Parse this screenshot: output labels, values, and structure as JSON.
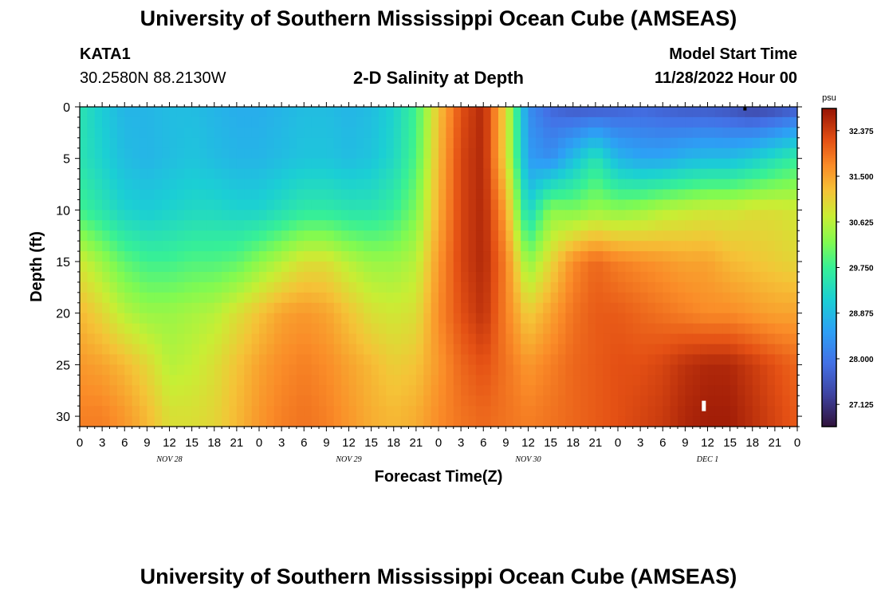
{
  "page": {
    "title": "University of Southern Mississippi Ocean Cube (AMSEAS)",
    "title_repeat": "University of Southern Mississippi Ocean Cube (AMSEAS)",
    "station_name": "KATA1",
    "station_coords": "30.2580N  88.2130W",
    "plot_title": "2-D Salinity at Depth",
    "model_start_label": "Model Start Time",
    "model_start_value": "11/28/2022 Hour 00"
  },
  "chart_data": {
    "type": "heatmap",
    "title": "2-D Salinity at Depth",
    "xlabel": "Forecast Time(Z)",
    "ylabel": "Depth (ft)",
    "x_range_hours": [
      0,
      96
    ],
    "y_range_ft": [
      0,
      31
    ],
    "x_tick_hours": [
      0,
      3,
      6,
      9,
      12,
      15,
      18,
      21,
      24,
      27,
      30,
      33,
      36,
      39,
      42,
      45,
      48,
      51,
      54,
      57,
      60,
      63,
      66,
      69,
      72,
      75,
      78,
      81,
      84,
      87,
      90,
      93,
      96
    ],
    "x_tick_labels": [
      "0",
      "3",
      "6",
      "9",
      "12",
      "15",
      "18",
      "21",
      "0",
      "3",
      "6",
      "9",
      "12",
      "15",
      "18",
      "21",
      "0",
      "3",
      "6",
      "9",
      "12",
      "15",
      "18",
      "21",
      "0",
      "3",
      "6",
      "9",
      "12",
      "15",
      "18",
      "21",
      "0"
    ],
    "date_labels": [
      {
        "hour": 12,
        "text": "NOV 28"
      },
      {
        "hour": 36,
        "text": "NOV 29"
      },
      {
        "hour": 60,
        "text": "NOV 30"
      },
      {
        "hour": 84,
        "text": "DEC 1"
      }
    ],
    "y_ticks": [
      0,
      5,
      10,
      15,
      20,
      25,
      30
    ],
    "y_tick_labels": [
      "0",
      "5",
      "10",
      "15",
      "20",
      "25",
      "30"
    ],
    "colorbar": {
      "unit": "psu",
      "min": 26.7,
      "max": 32.8,
      "tick_values": [
        32.375,
        31.5,
        30.625,
        29.75,
        28.875,
        28.0,
        27.125
      ],
      "tick_labels": [
        "32.375",
        "31.500",
        "30.625",
        "29.750",
        "28.875",
        "28.000",
        "27.125"
      ]
    },
    "salinity_anchor_hours": [
      0,
      3,
      6,
      9,
      12,
      15,
      18,
      21,
      24,
      27,
      30,
      33,
      36,
      39,
      42,
      45,
      48,
      51,
      54,
      57,
      60,
      63,
      66,
      69,
      72,
      75,
      78,
      81,
      84,
      87,
      90,
      93,
      96
    ],
    "salinity_anchor_depths_ft": [
      0,
      5,
      10,
      15,
      20,
      25,
      30
    ],
    "salinity_psu": [
      [
        29.5,
        29.1,
        28.8,
        28.8,
        28.9,
        28.9,
        28.8,
        28.7,
        28.7,
        28.8,
        28.9,
        28.9,
        28.8,
        28.9,
        29.2,
        29.8,
        31.2,
        32.2,
        32.6,
        31.0,
        28.3,
        27.8,
        27.6,
        27.6,
        27.7,
        27.8,
        27.7,
        27.6,
        27.6,
        27.5,
        27.3,
        27.4,
        27.6
      ],
      [
        29.5,
        29.2,
        28.9,
        28.8,
        28.9,
        29.0,
        28.9,
        28.8,
        28.8,
        28.9,
        29.0,
        29.0,
        28.9,
        29.0,
        29.3,
        29.9,
        31.3,
        32.3,
        32.6,
        31.0,
        28.5,
        28.3,
        28.9,
        29.5,
        28.8,
        28.6,
        28.6,
        28.8,
        28.9,
        28.9,
        29.1,
        29.4,
        29.7
      ],
      [
        29.8,
        29.5,
        29.2,
        29.1,
        29.2,
        29.3,
        29.3,
        29.2,
        29.2,
        29.4,
        29.6,
        29.6,
        29.5,
        29.5,
        29.7,
        30.2,
        31.4,
        32.3,
        32.6,
        31.5,
        29.2,
        30.3,
        30.2,
        30.4,
        30.3,
        30.4,
        30.6,
        30.7,
        30.8,
        30.8,
        30.9,
        30.9,
        30.8
      ],
      [
        30.8,
        30.4,
        30.0,
        29.8,
        29.8,
        29.9,
        29.9,
        30.0,
        30.3,
        30.6,
        30.9,
        30.9,
        30.6,
        30.4,
        30.4,
        30.6,
        31.6,
        32.3,
        32.6,
        31.8,
        30.3,
        31.0,
        31.7,
        32.0,
        31.8,
        31.7,
        31.6,
        31.5,
        31.5,
        31.3,
        31.2,
        31.1,
        31.0
      ],
      [
        31.3,
        31.0,
        30.6,
        30.4,
        30.4,
        30.5,
        30.6,
        30.9,
        31.2,
        31.5,
        31.6,
        31.5,
        31.2,
        30.9,
        30.8,
        30.9,
        31.7,
        32.2,
        32.5,
        31.8,
        31.1,
        31.5,
        31.9,
        32.1,
        32.1,
        32.0,
        31.9,
        31.8,
        31.7,
        31.7,
        31.6,
        31.5,
        31.5
      ],
      [
        31.6,
        31.5,
        31.3,
        31.0,
        30.6,
        30.7,
        30.9,
        31.2,
        31.5,
        31.7,
        31.8,
        31.7,
        31.5,
        31.3,
        31.1,
        31.2,
        31.6,
        32.0,
        32.2,
        31.9,
        31.6,
        31.8,
        32.0,
        32.1,
        32.2,
        32.2,
        32.3,
        32.5,
        32.6,
        32.6,
        32.4,
        32.2,
        32.0
      ],
      [
        31.8,
        31.8,
        31.6,
        31.3,
        30.9,
        30.9,
        31.0,
        31.3,
        31.6,
        31.8,
        31.9,
        31.8,
        31.6,
        31.4,
        31.3,
        31.4,
        31.7,
        31.9,
        32.0,
        31.9,
        31.8,
        31.9,
        32.0,
        32.1,
        32.2,
        32.3,
        32.4,
        32.6,
        32.7,
        32.7,
        32.5,
        32.3,
        32.1
      ]
    ],
    "markers": [
      {
        "hour": 83.5,
        "depth_ft": 29.0,
        "color": "#ffffff"
      },
      {
        "hour": 89.0,
        "depth_ft": 0.2,
        "color": "#000000"
      }
    ]
  }
}
